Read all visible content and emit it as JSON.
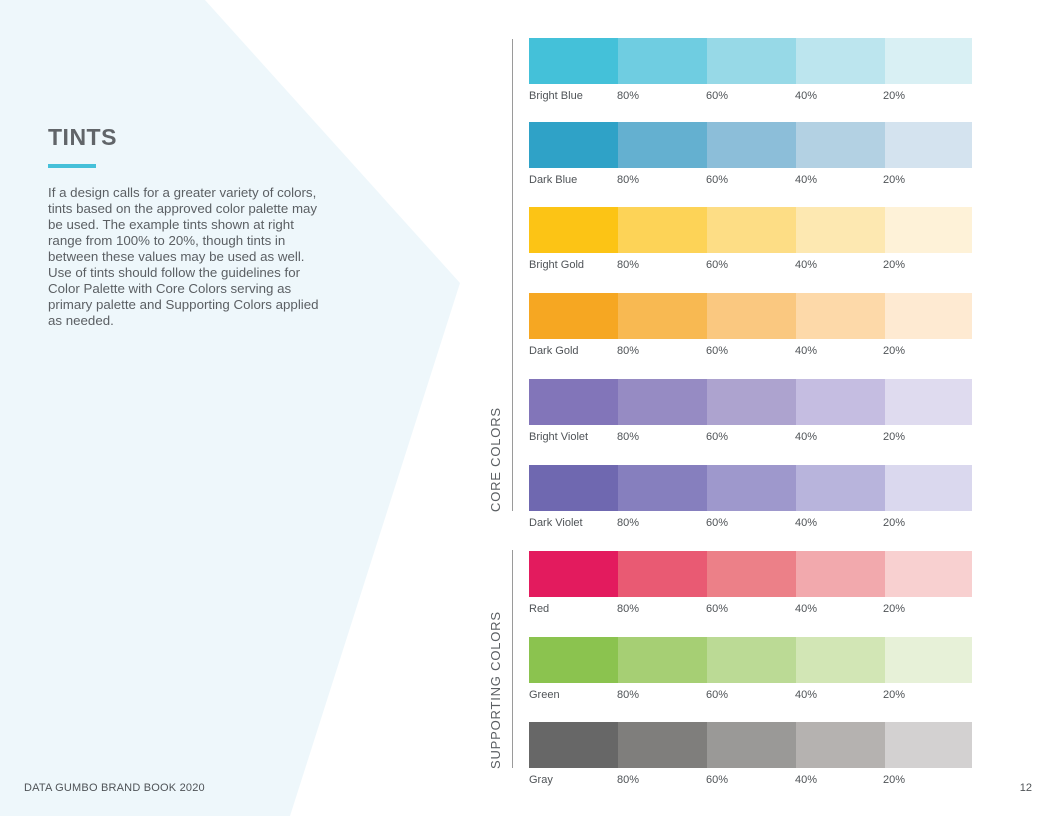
{
  "page": {
    "heading": "TINTS",
    "body": "If a design calls for a greater variety of colors, tints based on the approved color palette may be used. The example tints shown at right range from 100% to 20%, though tints in between these values may be used as well. Use of tints should follow the guidelines for Color Palette with Core Colors serving as primary palette and Supporting Colors applied as needed.",
    "accent_color": "#45c0d9"
  },
  "groups": [
    {
      "label": "CORE COLORS"
    },
    {
      "label": "SUPPORTING COLORS"
    }
  ],
  "tint_labels": [
    "80%",
    "60%",
    "40%",
    "20%"
  ],
  "swatches": [
    {
      "name": "Bright Blue",
      "colors": [
        "#44c1d9",
        "#6fcde1",
        "#97d9e7",
        "#bce5ee",
        "#d9f0f4"
      ]
    },
    {
      "name": "Dark Blue",
      "colors": [
        "#2fa2c7",
        "#64b0d0",
        "#8cbed9",
        "#b3d1e3",
        "#d4e3ef"
      ]
    },
    {
      "name": "Bright Gold",
      "colors": [
        "#fcc415",
        "#fdd357",
        "#fddd85",
        "#fde8b1",
        "#fef2d8"
      ]
    },
    {
      "name": "Dark Gold",
      "colors": [
        "#f6a722",
        "#f8b952",
        "#fac880",
        "#fdd9a9",
        "#feead2"
      ]
    },
    {
      "name": "Bright Violet",
      "colors": [
        "#8275b9",
        "#968bc3",
        "#ada3cf",
        "#c5bde1",
        "#dfdbef"
      ]
    },
    {
      "name": "Dark Violet",
      "colors": [
        "#6f68b0",
        "#867fbe",
        "#9e98cc",
        "#b8b4dc",
        "#dad8ee"
      ]
    },
    {
      "name": "Red",
      "colors": [
        "#e31b5e",
        "#e95a73",
        "#ec8088",
        "#f2a9ad",
        "#f8d0d0"
      ]
    },
    {
      "name": "Green",
      "colors": [
        "#8bc34f",
        "#a6cf74",
        "#bbda95",
        "#d2e6b5",
        "#e7f1d8"
      ]
    },
    {
      "name": "Gray",
      "colors": [
        "#676767",
        "#7f7e7c",
        "#9a9997",
        "#b5b2b0",
        "#d3d1d1"
      ]
    }
  ],
  "footer": {
    "left": "DATA GUMBO BRAND BOOK 2020",
    "page_number": "12"
  }
}
